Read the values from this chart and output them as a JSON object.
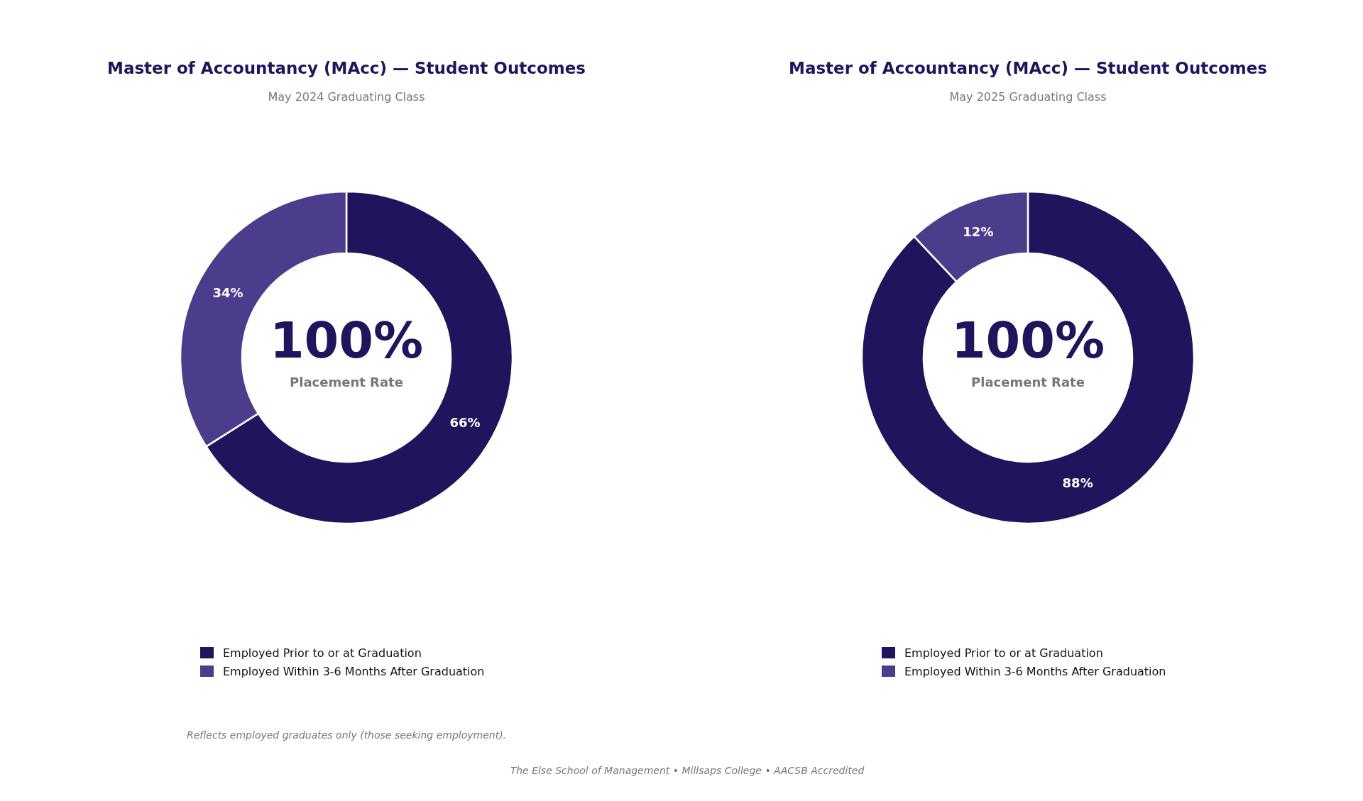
{
  "chart_data": [
    {
      "type": "donut",
      "title": "Master of Accountancy (MAcc) — Student Outcomes",
      "subtitle": "May 2024 Graduating Class",
      "categories": [
        "Employed Prior to or at Graduation",
        "Employed Within 3-6 Months After Graduation"
      ],
      "values": [
        66,
        34
      ],
      "value_labels": [
        "66%",
        "34%"
      ],
      "colors": [
        "#20145c",
        "#4b3d8c"
      ],
      "legend": "bottom",
      "annotations": [
        "100%",
        "Placement Rate",
        "Reflects employed graduates only (those seeking employment)."
      ]
    },
    {
      "type": "donut",
      "title": "Master of Accountancy (MAcc) — Student Outcomes",
      "subtitle": "May 2025 Graduating Class",
      "categories": [
        "Employed Prior to or at Graduation",
        "Employed Within 3-6 Months After Graduation"
      ],
      "values": [
        88,
        12
      ],
      "value_labels": [
        "88%",
        "12%"
      ],
      "colors": [
        "#20145c",
        "#4b3d8c"
      ],
      "legend": "bottom",
      "annotations": [
        "100%",
        "Placement Rate",
        "The Else School of Management  •  Millsaps College  •  AACSB Accredited"
      ]
    }
  ]
}
